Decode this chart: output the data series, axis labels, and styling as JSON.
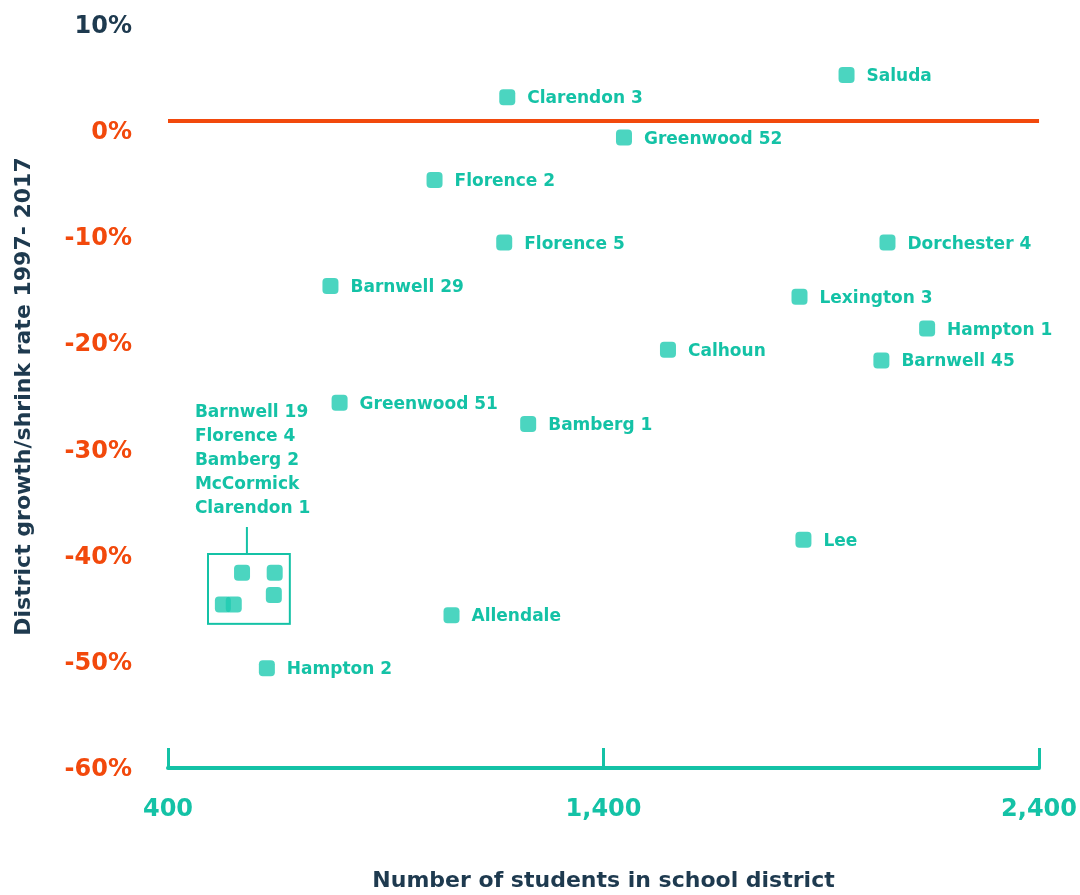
{
  "chart_data": {
    "type": "scatter",
    "xlabel": "Number of students in school district",
    "ylabel": "District growth/shrink rate 1997- 2017",
    "x": [
      1958,
      1179,
      1447,
      1012,
      1172,
      2052,
      773,
      1850,
      2143,
      1548,
      2038,
      794,
      1227,
      1859,
      1051,
      627,
      570,
      645,
      643,
      526,
      551
    ],
    "values": [
      5.3,
      3.2,
      -0.6,
      -4.6,
      -10.5,
      -10.5,
      -14.6,
      -15.6,
      -18.6,
      -20.6,
      -21.6,
      -25.6,
      -27.6,
      -38.5,
      -45.6,
      -50.6,
      -41.6,
      -41.6,
      -43.7,
      -44.6,
      -44.6
    ],
    "color": "#1ecbb0",
    "marker": "square",
    "xlim": [
      400,
      2400
    ],
    "xticks": [
      {
        "value": 400,
        "label": "400"
      },
      {
        "value": 1400,
        "label": "1,400"
      },
      {
        "value": 2400,
        "label": "2,400"
      }
    ],
    "ylim": [
      -60,
      10
    ],
    "yticks": [
      {
        "value": -60,
        "label": "-60%"
      },
      {
        "value": -50,
        "label": "-50%"
      },
      {
        "value": -40,
        "label": "-40%"
      },
      {
        "value": -30,
        "label": "-30%"
      },
      {
        "value": -20,
        "label": "-20%"
      },
      {
        "value": -10,
        "label": "-10%"
      },
      {
        "value": 0,
        "label": "0%"
      },
      {
        "value": 10,
        "label": "10%"
      }
    ],
    "grid": false,
    "ref_lines": [
      {
        "axis": "y",
        "value": 1,
        "color": "#f2490c"
      }
    ],
    "annotations": [
      {
        "text": "Saluda",
        "x": 1958,
        "y": 5.3
      },
      {
        "text": "Clarendon 3",
        "x": 1179,
        "y": 3.2
      },
      {
        "text": "Greenwood 52",
        "x": 1447,
        "y": -0.6
      },
      {
        "text": "Florence 2",
        "x": 1012,
        "y": -4.6
      },
      {
        "text": "Florence 5",
        "x": 1172,
        "y": -10.5
      },
      {
        "text": "Dorchester 4",
        "x": 2052,
        "y": -10.5
      },
      {
        "text": "Barnwell 29",
        "x": 773,
        "y": -14.6
      },
      {
        "text": "Lexington 3",
        "x": 1850,
        "y": -15.6
      },
      {
        "text": "Hampton 1",
        "x": 2143,
        "y": -18.6
      },
      {
        "text": "Calhoun",
        "x": 1548,
        "y": -20.6
      },
      {
        "text": "Barnwell 45",
        "x": 2038,
        "y": -21.6
      },
      {
        "text": "Greenwood 51",
        "x": 794,
        "y": -25.6
      },
      {
        "text": "Bamberg 1",
        "x": 1227,
        "y": -27.6
      },
      {
        "text": "Lee",
        "x": 1859,
        "y": -38.5
      },
      {
        "text": "Allendale",
        "x": 1051,
        "y": -45.6
      },
      {
        "text": "Hampton 2",
        "x": 627,
        "y": -50.6
      },
      "Barnwell 19\nFlorence 4\nBamberg 2\nMcCormick\nClarendon 1"
    ]
  }
}
